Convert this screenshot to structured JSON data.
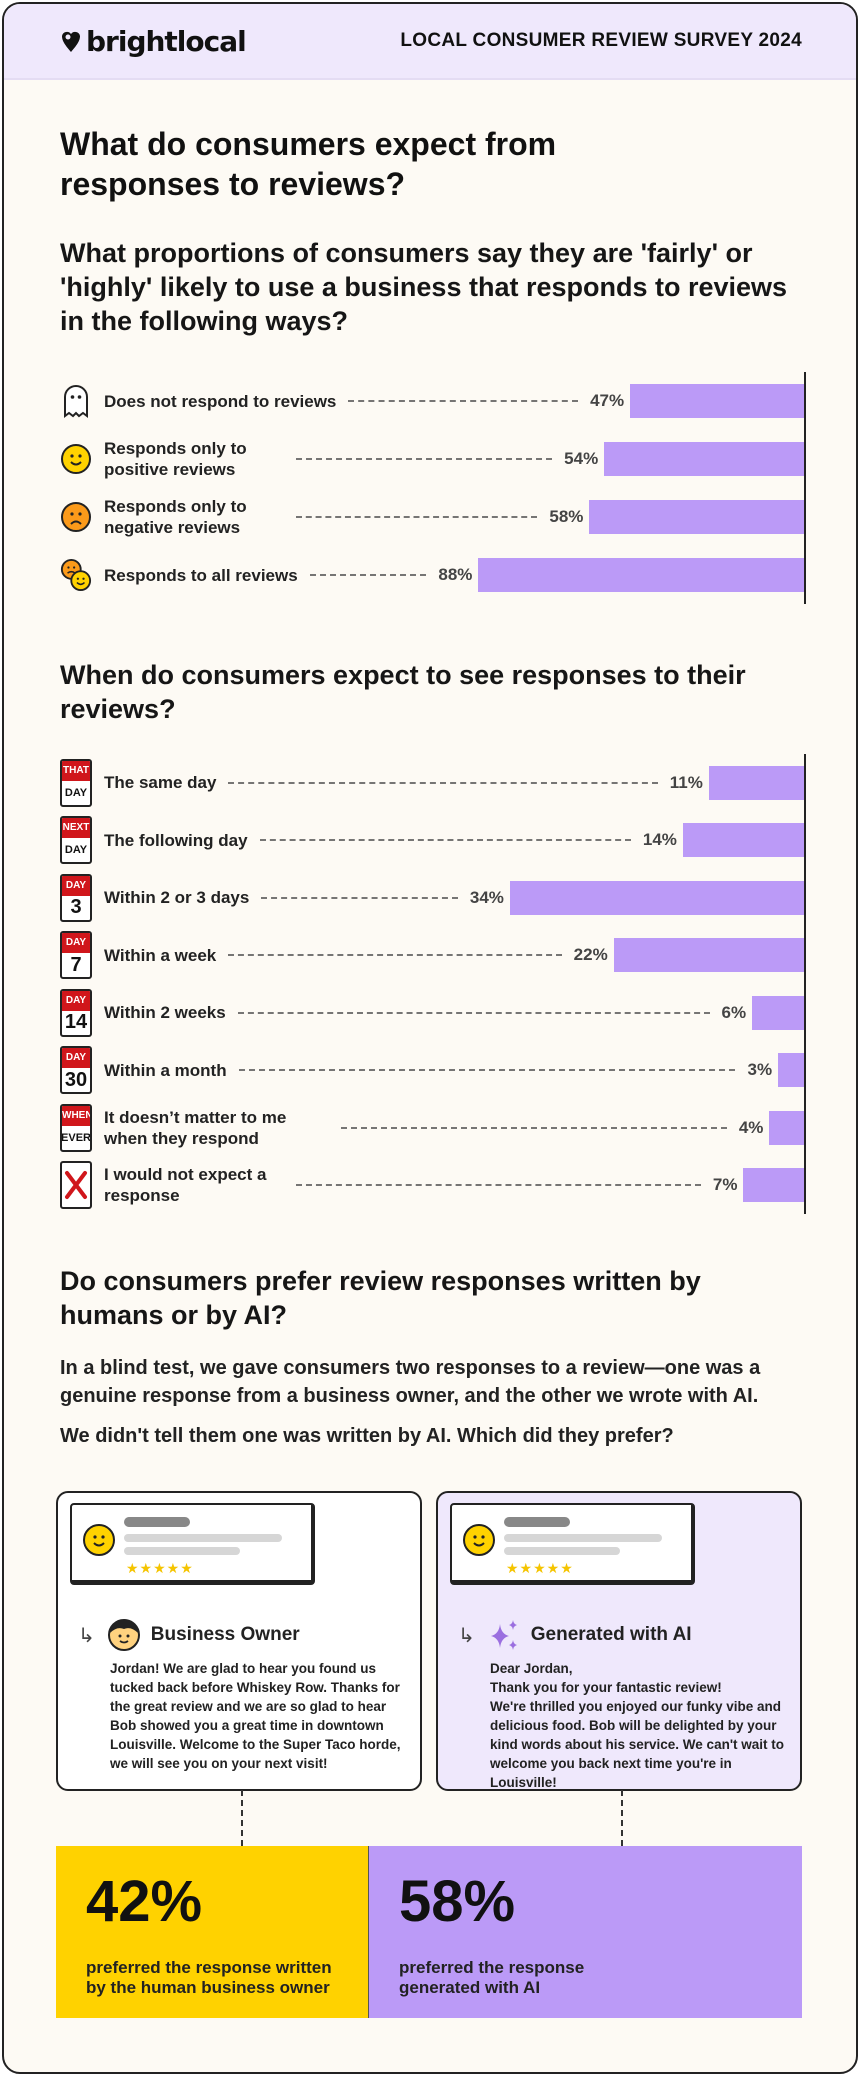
{
  "header": {
    "brand": "brightlocal",
    "survey_title": "LOCAL CONSUMER REVIEW SURVEY 2024"
  },
  "section1": {
    "title": "What do consumers expect from responses to reviews?",
    "question": "What proportions of consumers say they are 'fairly' or 'highly' likely to use a business that responds to reviews in the following ways?"
  },
  "section2": {
    "title": "When do consumers expect to see responses to their reviews?"
  },
  "section3": {
    "title": "Do consumers prefer review responses written by humans or by AI?",
    "para1": "In a blind test, we gave consumers two responses to a review—one was a genuine response from a business owner, and the other we wrote with AI.",
    "para2": "We didn't tell them one was written by AI. Which did they prefer?"
  },
  "chart_data": [
    {
      "type": "bar",
      "orientation": "horizontal",
      "title": "What proportions of consumers say they are 'fairly' or 'highly' likely to use a business that responds to reviews in the following ways?",
      "categories": [
        "Does not respond to reviews",
        "Responds only to positive reviews",
        "Responds only to negative reviews",
        "Responds to all reviews"
      ],
      "values": [
        47,
        54,
        58,
        88
      ],
      "labels": [
        "47%",
        "54%",
        "58%",
        "88%"
      ],
      "icons": [
        "ghost-icon",
        "smiley-face-icon",
        "frowning-face-icon",
        "mixed-faces-icon"
      ],
      "color": "#bb9af7"
    },
    {
      "type": "bar",
      "orientation": "horizontal",
      "title": "When do consumers expect to see responses to their reviews?",
      "categories": [
        "The same day",
        "The following day",
        "Within 2 or 3 days",
        "Within a week",
        "Within 2 weeks",
        "Within a month",
        "It doesn’t matter to me when they respond",
        "I would not expect a response"
      ],
      "values": [
        11,
        14,
        34,
        22,
        6,
        3,
        4,
        7
      ],
      "labels": [
        "11%",
        "14%",
        "34%",
        "22%",
        "6%",
        "3%",
        "4%",
        "7%"
      ],
      "icons": [
        [
          "THAT",
          "DAY"
        ],
        [
          "NEXT",
          "DAY"
        ],
        [
          "DAY",
          "3"
        ],
        [
          "DAY",
          "7"
        ],
        [
          "DAY",
          "14"
        ],
        [
          "DAY",
          "30"
        ],
        [
          "WHEN",
          "EVER"
        ],
        [
          "X",
          ""
        ]
      ],
      "color": "#bb9af7"
    }
  ],
  "comparison": {
    "human": {
      "label": "Business Owner",
      "text": "Jordan! We are glad to hear you found us tucked back before Whiskey Row. Thanks for the great review and we are so glad to hear Bob showed you a great time in downtown Louisville. Welcome to the Super Taco horde, we will see you on your next visit!",
      "percent": "42%",
      "caption": "preferred the response written by the human business owner",
      "color": "#ffd200"
    },
    "ai": {
      "label": "Generated with AI",
      "text": "Dear Jordan,\nThank you for your fantastic review!\nWe're thrilled you enjoyed our funky vibe and delicious food. Bob will be delighted by your kind words about his service. We can't wait to welcome you back next time you're in Louisville!",
      "percent": "58%",
      "caption": "preferred the response generated with AI",
      "color": "#bb9af7"
    },
    "stars": "★★★★★"
  }
}
